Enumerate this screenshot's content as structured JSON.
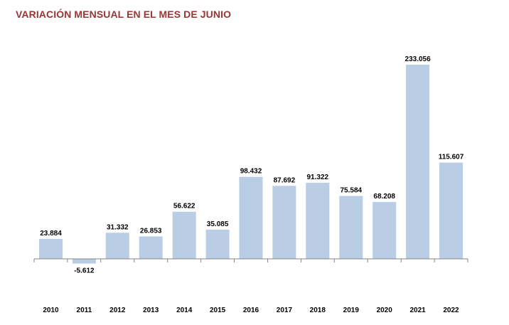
{
  "chart_data": {
    "type": "bar",
    "title": "VARIACIÓN MENSUAL EN EL MES DE JUNIO",
    "categories": [
      "2010",
      "2011",
      "2012",
      "2013",
      "2014",
      "2015",
      "2016",
      "2017",
      "2018",
      "2019",
      "2020",
      "2021",
      "2022"
    ],
    "values": [
      23884,
      -5612,
      31332,
      26853,
      56622,
      35085,
      98432,
      87692,
      91322,
      75584,
      68208,
      233056,
      115607
    ],
    "value_labels": [
      "23.884",
      "-5.612",
      "31.332",
      "26.853",
      "56.622",
      "35.085",
      "98.432",
      "87.692",
      "91.322",
      "75.584",
      "68.208",
      "233.056",
      "115.607"
    ],
    "xlabel": "",
    "ylabel": "",
    "grid": false,
    "legend": "none",
    "bar_color": "#b9cde5",
    "title_color": "#953735"
  }
}
